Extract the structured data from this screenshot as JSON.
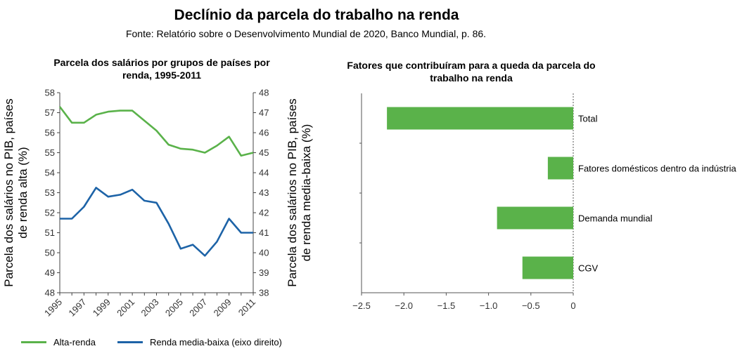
{
  "header": {
    "title": "Declínio da parcela do trabalho na renda",
    "source": "Fonte: Relatório sobre o Desenvolvimento Mundial de 2020, Banco Mundial, p. 86."
  },
  "colors": {
    "green": "#5ab24a",
    "blue": "#1d63a7",
    "bar": "#5ab24a"
  },
  "chart_data": [
    {
      "type": "line",
      "title": "Parcela dos salários por grupos de países por renda, 1995-2011",
      "x": [
        1995,
        1996,
        1997,
        1998,
        1999,
        2000,
        2001,
        2002,
        2003,
        2004,
        2005,
        2006,
        2007,
        2008,
        2009,
        2010,
        2011
      ],
      "xticks": [
        "1995",
        "1997",
        "1999",
        "2001",
        "2003",
        "2005",
        "2007",
        "2009",
        "2011"
      ],
      "ylabel_left": "Parcela dos salários no PIB, países de renda alta (%)",
      "ylabel_right": "Parcela dos salários no PIB, países de renda media-baixa (%)",
      "ylim_left": [
        48,
        58
      ],
      "ylim_right": [
        38,
        48
      ],
      "series": [
        {
          "name": "Alta-renda",
          "axis": "left",
          "values": [
            57.3,
            56.5,
            56.5,
            56.9,
            57.05,
            57.1,
            57.1,
            56.6,
            56.1,
            55.4,
            55.2,
            55.15,
            55.0,
            55.35,
            55.8,
            54.85,
            55.0
          ]
        },
        {
          "name": "Renda media-baixa (eixo direito)",
          "axis": "right",
          "values": [
            41.7,
            41.7,
            42.3,
            43.25,
            42.8,
            42.9,
            43.15,
            42.6,
            42.5,
            41.45,
            40.2,
            40.4,
            39.85,
            40.55,
            41.7,
            41.0,
            41.0
          ]
        }
      ]
    },
    {
      "type": "bar",
      "orientation": "horizontal",
      "title": "Fatores que contribuíram para a queda da parcela do trabalho na renda",
      "categories": [
        "Total",
        "Fatores domésticos dentro da indústria",
        "Demanda mundial",
        "CGV"
      ],
      "values": [
        -2.2,
        -0.3,
        -0.9,
        -0.6
      ],
      "xlim": [
        -2.5,
        0
      ],
      "xticks": [
        "−2.5",
        "−2.0",
        "−1.5",
        "−1.0",
        "−0.5",
        "0"
      ]
    }
  ]
}
